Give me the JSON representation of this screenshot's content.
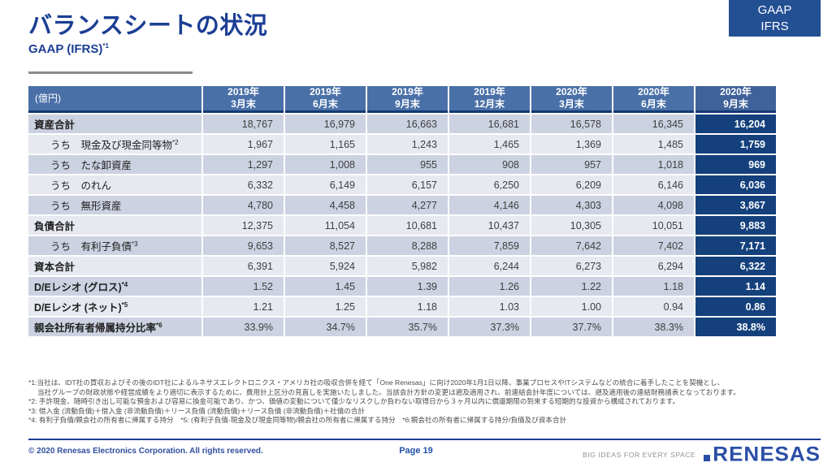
{
  "page": {
    "title": "バランスシートの状況",
    "subtitle": "GAAP (IFRS)",
    "subtitle_note": "*1"
  },
  "badge": {
    "line1": "GAAP",
    "line2": "IFRS"
  },
  "table": {
    "unit_label": "(億円)",
    "columns": [
      "2019年\n3月末",
      "2019年\n6月末",
      "2019年\n9月末",
      "2019年\n12月末",
      "2020年\n3月末",
      "2020年\n6月末",
      "2020年\n9月末"
    ],
    "rows": [
      {
        "label": "資産合計",
        "note": "",
        "indent": false,
        "bold": true,
        "values": [
          "18,767",
          "16,979",
          "16,663",
          "16,681",
          "16,578",
          "16,345",
          "16,204"
        ]
      },
      {
        "label": "うち　現金及び現金同等物",
        "note": "*2",
        "indent": true,
        "bold": false,
        "values": [
          "1,967",
          "1,165",
          "1,243",
          "1,465",
          "1,369",
          "1,485",
          "1,759"
        ]
      },
      {
        "label": "うち　たな卸資産",
        "note": "",
        "indent": true,
        "bold": false,
        "values": [
          "1,297",
          "1,008",
          "955",
          "908",
          "957",
          "1,018",
          "969"
        ]
      },
      {
        "label": "うち　のれん",
        "note": "",
        "indent": true,
        "bold": false,
        "values": [
          "6,332",
          "6,149",
          "6,157",
          "6,250",
          "6,209",
          "6,146",
          "6,036"
        ]
      },
      {
        "label": "うち　無形資産",
        "note": "",
        "indent": true,
        "bold": false,
        "values": [
          "4,780",
          "4,458",
          "4,277",
          "4,146",
          "4,303",
          "4,098",
          "3,867"
        ]
      },
      {
        "label": "負債合計",
        "note": "",
        "indent": false,
        "bold": true,
        "values": [
          "12,375",
          "11,054",
          "10,681",
          "10,437",
          "10,305",
          "10,051",
          "9,883"
        ]
      },
      {
        "label": "うち　有利子負債",
        "note": "*3",
        "indent": true,
        "bold": false,
        "values": [
          "9,653",
          "8,527",
          "8,288",
          "7,859",
          "7,642",
          "7,402",
          "7,171"
        ]
      },
      {
        "label": "資本合計",
        "note": "",
        "indent": false,
        "bold": true,
        "values": [
          "6,391",
          "5,924",
          "5,982",
          "6,244",
          "6,273",
          "6,294",
          "6,322"
        ]
      },
      {
        "label": "D/Eレシオ (グロス)",
        "note": "*4",
        "indent": false,
        "bold": true,
        "values": [
          "1.52",
          "1.45",
          "1.39",
          "1.26",
          "1.22",
          "1.18",
          "1.14"
        ]
      },
      {
        "label": "D/Eレシオ (ネット)",
        "note": "*5",
        "indent": false,
        "bold": true,
        "values": [
          "1.21",
          "1.25",
          "1.18",
          "1.03",
          "1.00",
          "0.94",
          "0.86"
        ]
      },
      {
        "label": "親会社所有者帰属持分比率",
        "note": "*6",
        "indent": false,
        "bold": true,
        "values": [
          "33.9%",
          "34.7%",
          "35.7%",
          "37.3%",
          "37.7%",
          "38.3%",
          "38.8%"
        ]
      }
    ]
  },
  "footnotes": [
    {
      "text": "*1:当社は、IDT社の買収およびその後のIDT社によるルネサスエレクトロニクス・アメリカ社の吸収合併を経て「One Renesas」に向け2020年1月1日以降、事業プロセスやITシステムなどの統合に着手したことを契機とし、",
      "indent": false
    },
    {
      "text": "当社グループの財政状態や経営成績をより適切に表示するために、費用計上区分の見直しを実施いたしました。当該会計方針の変更は遡及適用され、前連結会計年度については、遡及適用後の連結財務諸表となっております。",
      "indent": true
    },
    {
      "text": "*2: 手許現金、随時引き出し可能な預金および容易に換金可能であり、かつ、価値の変動について僅少なリスクしか負わない取得日から３ヶ月以内に償還期限の到来する短期的な投資から構成されております。",
      "indent": false
    },
    {
      "text": "*3: 借入金 (流動負債)＋借入金 (非流動負債)＋リース負債 (流動負債)＋リース負債 (非流動負債)＋社債の合計",
      "indent": false
    },
    {
      "text": "*4: 有利子負債/親会社の所有者に帰属する持分　*5: (有利子負債-現金及び現金同等物)/親会社の所有者に帰属する持分　*6:親会社の所有者に帰属する持分/負債及び資本合計",
      "indent": false
    }
  ],
  "footer": {
    "copyright": "© 2020 Renesas Electronics Corporation. All rights reserved.",
    "page_number": "Page 19",
    "tagline": "BIG IDEAS FOR EVERY SPACE",
    "logo": "RENESAS"
  },
  "colors": {
    "title_blue": "#1b3e94",
    "badge_bg": "#234f93",
    "header_bg": "#4a70a8",
    "header_bg_last": "#40629b",
    "highlight_navy": "#14407c",
    "stripe_dark": "#ccd2e1",
    "stripe_light": "#e7e9f1",
    "logo_blue": "#2b4ea6"
  }
}
